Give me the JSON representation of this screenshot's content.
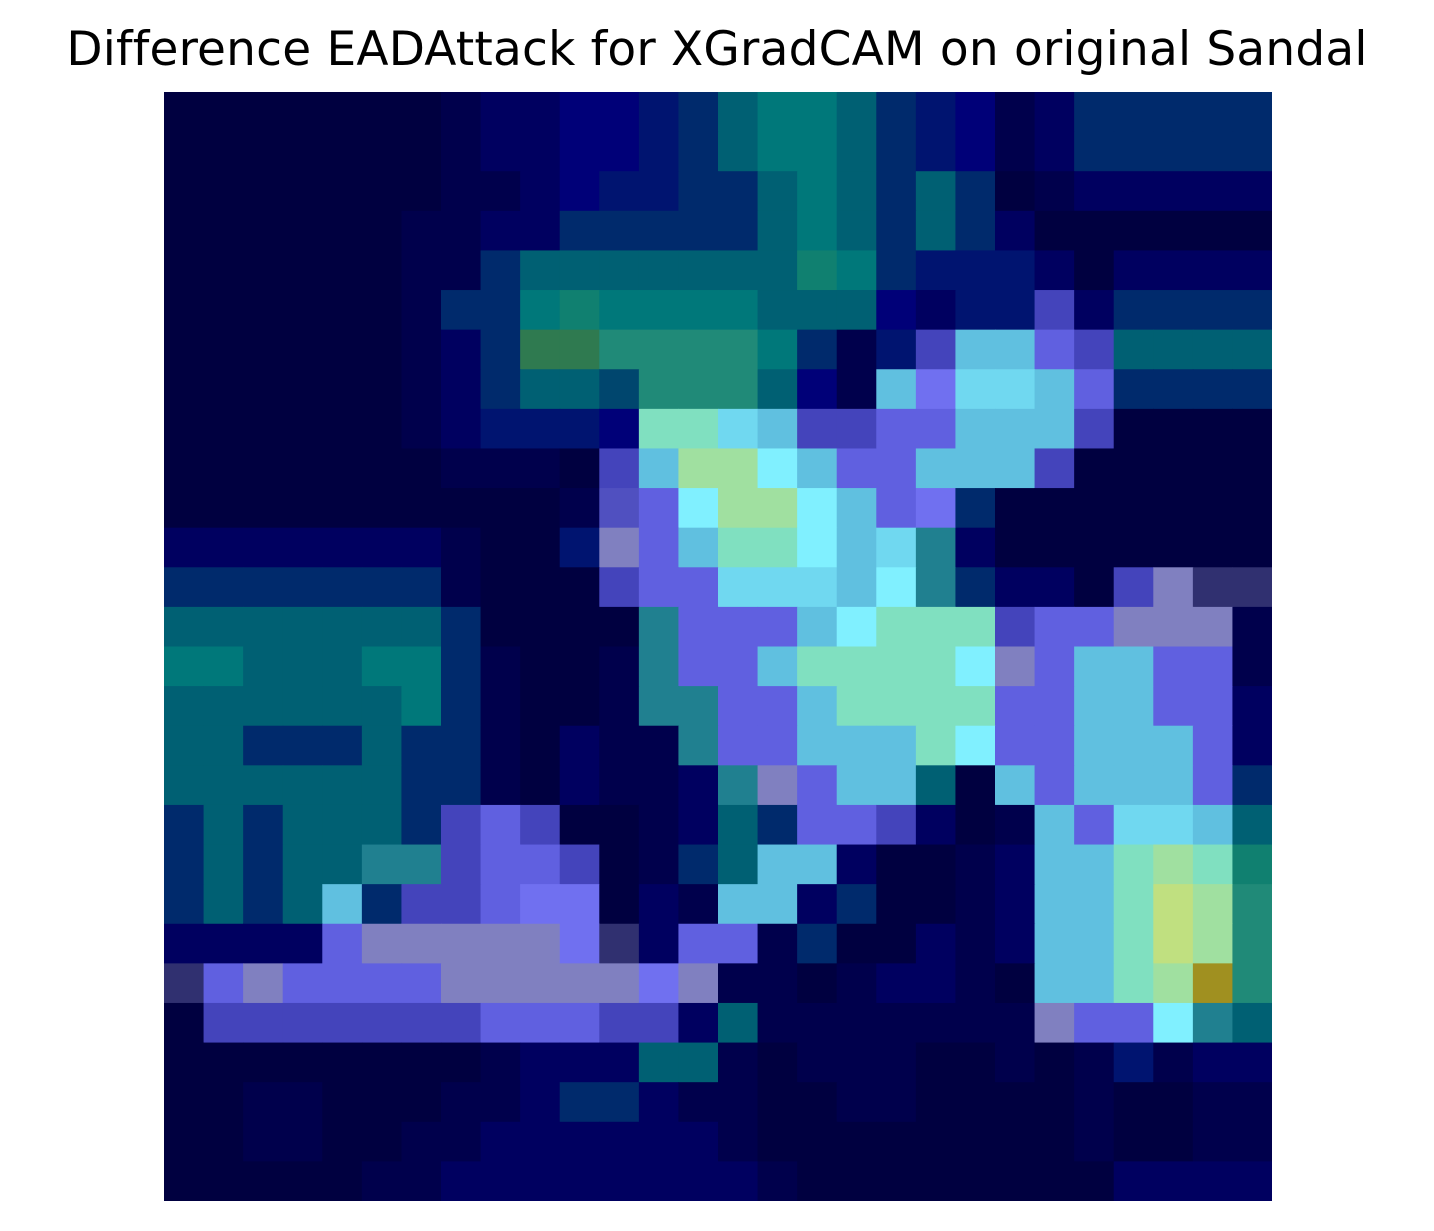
{
  "chart_data": {
    "type": "heatmap",
    "title": "Difference EADAttack for XGradCAM on original Sandal",
    "rows": 28,
    "cols": 28,
    "grid": false,
    "axes_visible": false,
    "colorbar": false,
    "palette": [
      "#000040",
      "#00004c",
      "#000060",
      "#000078",
      "#001470",
      "#002a6c",
      "#5050c0",
      "#6060e0",
      "#7070f0",
      "#8080ff",
      "#4444bb",
      "#00466e",
      "#006073",
      "#00787a",
      "#108070",
      "#208a78",
      "#2f7a50",
      "#60c0e0",
      "#70d8f0",
      "#80f0ff",
      "#80e0c0",
      "#a0e0a0",
      "#c0e080",
      "#a09020",
      "#208090",
      "#8080c0",
      "#303070",
      "#c0e0ff"
    ],
    "values": [
      [
        0,
        0,
        0,
        0,
        0,
        0,
        0,
        1,
        2,
        2,
        3,
        3,
        4,
        5,
        12,
        13,
        13,
        12,
        5,
        4,
        3,
        1,
        2,
        5,
        5,
        5,
        5,
        5
      ],
      [
        0,
        0,
        0,
        0,
        0,
        0,
        0,
        1,
        2,
        2,
        3,
        3,
        4,
        5,
        12,
        13,
        13,
        12,
        5,
        4,
        3,
        1,
        2,
        5,
        5,
        5,
        5,
        5
      ],
      [
        0,
        0,
        0,
        0,
        0,
        0,
        0,
        1,
        1,
        2,
        3,
        4,
        4,
        5,
        5,
        12,
        13,
        12,
        5,
        12,
        5,
        0,
        1,
        2,
        2,
        2,
        2,
        2
      ],
      [
        0,
        0,
        0,
        0,
        0,
        0,
        1,
        1,
        2,
        2,
        5,
        5,
        5,
        5,
        5,
        12,
        13,
        12,
        5,
        12,
        5,
        2,
        0,
        0,
        0,
        0,
        0,
        0
      ],
      [
        0,
        0,
        0,
        0,
        0,
        0,
        1,
        1,
        5,
        12,
        12,
        12,
        12,
        12,
        12,
        12,
        14,
        13,
        5,
        4,
        4,
        4,
        2,
        0,
        2,
        2,
        2,
        2
      ],
      [
        0,
        0,
        0,
        0,
        0,
        0,
        1,
        5,
        5,
        13,
        14,
        13,
        13,
        13,
        13,
        12,
        12,
        12,
        3,
        2,
        4,
        4,
        10,
        2,
        5,
        5,
        5,
        5
      ],
      [
        0,
        0,
        0,
        0,
        0,
        0,
        1,
        2,
        5,
        16,
        16,
        15,
        15,
        15,
        15,
        13,
        5,
        1,
        4,
        10,
        17,
        17,
        7,
        10,
        12,
        12,
        12,
        12
      ],
      [
        0,
        0,
        0,
        0,
        0,
        0,
        1,
        2,
        5,
        12,
        12,
        11,
        15,
        15,
        15,
        12,
        3,
        1,
        17,
        8,
        18,
        18,
        17,
        7,
        5,
        5,
        5,
        5
      ],
      [
        0,
        0,
        0,
        0,
        0,
        0,
        1,
        2,
        4,
        4,
        4,
        3,
        20,
        20,
        18,
        17,
        10,
        10,
        7,
        7,
        17,
        17,
        17,
        10,
        0,
        0,
        0,
        0
      ],
      [
        0,
        0,
        0,
        0,
        0,
        0,
        0,
        1,
        1,
        1,
        0,
        10,
        17,
        21,
        21,
        19,
        17,
        7,
        7,
        17,
        17,
        17,
        10,
        0,
        0,
        0,
        0,
        0
      ],
      [
        0,
        0,
        0,
        0,
        0,
        0,
        0,
        0,
        0,
        0,
        1,
        6,
        7,
        19,
        21,
        21,
        19,
        17,
        7,
        8,
        5,
        0,
        0,
        0,
        0,
        0,
        0,
        0
      ],
      [
        2,
        2,
        2,
        2,
        2,
        2,
        2,
        1,
        0,
        0,
        4,
        25,
        7,
        17,
        20,
        20,
        19,
        17,
        18,
        24,
        2,
        0,
        0,
        0,
        0,
        0,
        0,
        0
      ],
      [
        5,
        5,
        5,
        5,
        5,
        5,
        5,
        1,
        0,
        0,
        0,
        10,
        7,
        7,
        18,
        18,
        18,
        17,
        19,
        24,
        5,
        2,
        2,
        0,
        10,
        25,
        26,
        26
      ],
      [
        12,
        12,
        12,
        12,
        12,
        12,
        12,
        5,
        0,
        0,
        0,
        0,
        24,
        7,
        7,
        7,
        17,
        19,
        20,
        20,
        20,
        10,
        7,
        7,
        25,
        25,
        25,
        1
      ],
      [
        13,
        13,
        12,
        12,
        12,
        13,
        13,
        5,
        1,
        0,
        0,
        1,
        24,
        7,
        7,
        17,
        20,
        20,
        20,
        20,
        19,
        25,
        7,
        17,
        17,
        7,
        7,
        1
      ],
      [
        12,
        12,
        12,
        12,
        12,
        12,
        13,
        5,
        1,
        0,
        0,
        1,
        24,
        24,
        7,
        7,
        17,
        20,
        20,
        20,
        20,
        7,
        7,
        17,
        17,
        7,
        7,
        2
      ],
      [
        12,
        12,
        5,
        5,
        5,
        12,
        5,
        5,
        1,
        0,
        2,
        1,
        1,
        24,
        7,
        7,
        17,
        17,
        17,
        20,
        19,
        7,
        7,
        17,
        17,
        17,
        7,
        2
      ],
      [
        12,
        12,
        12,
        12,
        12,
        12,
        5,
        5,
        1,
        0,
        2,
        1,
        1,
        2,
        24,
        25,
        7,
        17,
        17,
        12,
        0,
        17,
        7,
        17,
        17,
        17,
        7,
        5
      ],
      [
        5,
        12,
        5,
        12,
        12,
        12,
        5,
        10,
        7,
        10,
        0,
        0,
        1,
        2,
        12,
        5,
        7,
        7,
        10,
        2,
        0,
        1,
        17,
        7,
        18,
        18,
        17,
        12
      ],
      [
        5,
        12,
        5,
        12,
        12,
        24,
        24,
        10,
        7,
        7,
        10,
        0,
        1,
        5,
        12,
        17,
        17,
        2,
        0,
        0,
        1,
        2,
        17,
        17,
        20,
        21,
        20,
        14
      ],
      [
        5,
        12,
        5,
        12,
        17,
        5,
        10,
        10,
        7,
        8,
        8,
        0,
        2,
        1,
        17,
        17,
        2,
        5,
        0,
        0,
        1,
        2,
        17,
        17,
        20,
        22,
        21,
        15
      ],
      [
        2,
        2,
        2,
        2,
        7,
        25,
        25,
        25,
        25,
        25,
        8,
        26,
        2,
        7,
        7,
        1,
        5,
        0,
        0,
        2,
        1,
        2,
        17,
        17,
        20,
        22,
        21,
        15
      ],
      [
        26,
        7,
        25,
        7,
        7,
        7,
        7,
        25,
        25,
        25,
        25,
        25,
        8,
        25,
        1,
        1,
        0,
        1,
        2,
        2,
        1,
        0,
        17,
        17,
        20,
        21,
        23,
        15
      ],
      [
        0,
        10,
        10,
        10,
        10,
        10,
        10,
        10,
        7,
        7,
        7,
        10,
        10,
        2,
        12,
        1,
        1,
        1,
        1,
        1,
        1,
        1,
        25,
        7,
        7,
        19,
        24,
        12
      ],
      [
        0,
        0,
        0,
        0,
        0,
        0,
        0,
        0,
        1,
        2,
        2,
        2,
        12,
        12,
        1,
        0,
        1,
        1,
        1,
        0,
        0,
        1,
        0,
        1,
        4,
        1,
        2,
        2
      ],
      [
        0,
        0,
        1,
        1,
        0,
        0,
        0,
        1,
        1,
        2,
        5,
        5,
        2,
        1,
        1,
        0,
        0,
        1,
        1,
        0,
        0,
        0,
        0,
        1,
        0,
        0,
        1,
        1
      ],
      [
        0,
        0,
        1,
        1,
        0,
        0,
        1,
        1,
        2,
        2,
        2,
        2,
        2,
        2,
        1,
        0,
        0,
        0,
        0,
        0,
        0,
        0,
        0,
        1,
        0,
        0,
        1,
        1
      ],
      [
        0,
        0,
        0,
        0,
        0,
        1,
        1,
        2,
        2,
        2,
        2,
        2,
        2,
        2,
        2,
        1,
        0,
        0,
        0,
        0,
        0,
        0,
        0,
        0,
        2,
        2,
        2,
        2
      ]
    ]
  }
}
